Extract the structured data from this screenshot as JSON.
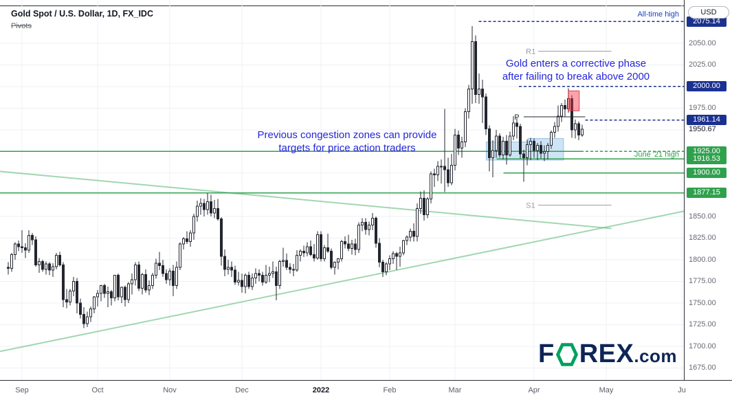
{
  "header": {
    "symbol_title": "Gold Spot / U.S. Dollar, 1D, FX_IDC",
    "indicator": "Pivots",
    "currency_button": "USD"
  },
  "annotations": {
    "all_time_high": "All-time high",
    "corrective_phase": "Gold enters a corrective phase\nafter failing to break above 2000",
    "congestion_zones": "Previous congestion zones can provide\ntargets for price action traders",
    "june_21_high": "June '21 high"
  },
  "logo": {
    "f": "F",
    "rex": "REX",
    "com": ".com"
  },
  "colors": {
    "navy": "#1b3190",
    "green": "#2fa14d",
    "trend_green": "#63bd7c",
    "gray": "#9b9ea6",
    "dark": "#23262f",
    "candle": "#23262f",
    "grid": "#eef0f5",
    "box_blue": "rgba(126,183,231,0.38)",
    "box_blue_border": "rgba(96,150,200,0.55)",
    "box_red": "rgba(242,54,69,0.45)",
    "box_red_border": "rgba(220,40,55,0.85)",
    "annotation_blue": "#2426d8",
    "badge_navy": "#1b3190",
    "badge_green": "#2fa14d",
    "logo_navy": "#0e2556",
    "logo_green": "#00a160"
  },
  "chart_data": {
    "type": "candlestick",
    "title": "Gold Spot / U.S. Dollar",
    "interval": "1D",
    "exchange": "FX_IDC",
    "ylim": [
      1661,
      2100
    ],
    "grid": {
      "h_step": 25,
      "h_min": 1675,
      "h_max": 2050
    },
    "y_ticks": [
      2050,
      2025,
      1975,
      1850,
      1825,
      1800,
      1775,
      1750,
      1725,
      1700,
      1675
    ],
    "plain_price_label": 1950.67,
    "price_badges": [
      {
        "value": 2075.14,
        "style": "navy"
      },
      {
        "value": 2000.0,
        "style": "navy"
      },
      {
        "value": 1961.14,
        "style": "navy"
      },
      {
        "value": 1925.0,
        "style": "green"
      },
      {
        "value": 1916.53,
        "style": "green"
      },
      {
        "value": 1900.0,
        "style": "green"
      },
      {
        "value": 1877.15,
        "style": "green"
      }
    ],
    "x_axis": {
      "labels": [
        {
          "text": "Sep",
          "idx": 4
        },
        {
          "text": "Oct",
          "idx": 26
        },
        {
          "text": "Nov",
          "idx": 47
        },
        {
          "text": "Dec",
          "idx": 68
        },
        {
          "text": "2022",
          "idx": 91,
          "major": true
        },
        {
          "text": "Feb",
          "idx": 111
        },
        {
          "text": "Mar",
          "idx": 130
        },
        {
          "text": "Apr",
          "idx": 153
        },
        {
          "text": "May",
          "idx": 174
        },
        {
          "text": "Ju",
          "idx": 196
        }
      ]
    },
    "levels": [
      {
        "name": "all-time-high-line",
        "price": 2075.14,
        "color": "navy",
        "dash": true,
        "x1f": 0.7,
        "x2f": 1.0
      },
      {
        "name": "round-2000-line",
        "price": 2000.0,
        "color": "navy",
        "dash": true,
        "x1f": 0.759,
        "x2f": 1.0
      },
      {
        "name": "current-level-line",
        "price": 1961.14,
        "color": "navy",
        "dash": true,
        "x1f": 0.856,
        "x2f": 1.0
      },
      {
        "name": "level-1925-solid",
        "price": 1925.0,
        "color": "green",
        "dash": false,
        "x1f": 0.0,
        "x2f": 0.849
      },
      {
        "name": "level-1925-dashed",
        "price": 1925.0,
        "color": "green",
        "dash": true,
        "x1f": 0.849,
        "x2f": 1.0
      },
      {
        "name": "june-21-high-line",
        "price": 1916.53,
        "color": "green",
        "dash": false,
        "x1f": 0.726,
        "x2f": 1.0
      },
      {
        "name": "level-1900",
        "price": 1900.0,
        "color": "green",
        "dash": false,
        "x1f": 0.736,
        "x2f": 1.0
      },
      {
        "name": "level-1877",
        "price": 1877.15,
        "color": "green",
        "dash": false,
        "x1f": 0.0,
        "x2f": 1.0
      }
    ],
    "pivots": [
      {
        "label": "R1",
        "price": 2041,
        "x1f": 0.787,
        "x2f": 0.894,
        "label_xf": 0.769,
        "style": "gray"
      },
      {
        "label": "P",
        "price": 1965,
        "x1f": 0.766,
        "x2f": 0.856,
        "label_xf": 0.752,
        "style": "dark"
      },
      {
        "label": "S1",
        "price": 1863,
        "x1f": 0.787,
        "x2f": 0.894,
        "label_xf": 0.769,
        "style": "gray"
      }
    ],
    "trendlines": [
      {
        "x1f": 0.0,
        "p1": 1902,
        "x2f": 0.894,
        "p2": 1836
      },
      {
        "x1f": 0.0,
        "p1": 1694,
        "x2f": 1.0,
        "p2": 1856
      }
    ],
    "boxes": [
      {
        "x1f": 0.711,
        "x2f": 0.772,
        "top": 1936,
        "bottom": 1915,
        "fill": "blue"
      },
      {
        "x1f": 0.772,
        "x2f": 0.824,
        "top": 1940,
        "bottom": 1915,
        "fill": "blue"
      },
      {
        "x1f": 0.831,
        "x2f": 0.847,
        "top": 1995,
        "bottom": 1972,
        "fill": "red"
      }
    ],
    "candles": [
      [
        1791,
        1797,
        1783,
        1790
      ],
      [
        1790,
        1808,
        1786,
        1806
      ],
      [
        1806,
        1820,
        1800,
        1818
      ],
      [
        1818,
        1822,
        1810,
        1815
      ],
      [
        1815,
        1834,
        1808,
        1814
      ],
      [
        1814,
        1819,
        1802,
        1811
      ],
      [
        1811,
        1834,
        1808,
        1828
      ],
      [
        1828,
        1831,
        1817,
        1823
      ],
      [
        1823,
        1827,
        1792,
        1794
      ],
      [
        1794,
        1802,
        1785,
        1798
      ],
      [
        1798,
        1800,
        1786,
        1789
      ],
      [
        1789,
        1798,
        1783,
        1795
      ],
      [
        1795,
        1797,
        1782,
        1788
      ],
      [
        1788,
        1796,
        1780,
        1792
      ],
      [
        1792,
        1808,
        1789,
        1805
      ],
      [
        1805,
        1809,
        1792,
        1794
      ],
      [
        1794,
        1797,
        1745,
        1754
      ],
      [
        1754,
        1766,
        1744,
        1751
      ],
      [
        1751,
        1766,
        1747,
        1764
      ],
      [
        1764,
        1780,
        1758,
        1775
      ],
      [
        1775,
        1779,
        1738,
        1750
      ],
      [
        1750,
        1755,
        1732,
        1737
      ],
      [
        1737,
        1745,
        1721,
        1726
      ],
      [
        1726,
        1740,
        1722,
        1734
      ],
      [
        1734,
        1746,
        1728,
        1743
      ],
      [
        1743,
        1758,
        1738,
        1757
      ],
      [
        1757,
        1765,
        1746,
        1761
      ],
      [
        1761,
        1771,
        1752,
        1770
      ],
      [
        1770,
        1772,
        1756,
        1761
      ],
      [
        1761,
        1769,
        1745,
        1763
      ],
      [
        1763,
        1765,
        1747,
        1756
      ],
      [
        1756,
        1782,
        1752,
        1782
      ],
      [
        1782,
        1784,
        1753,
        1757
      ],
      [
        1757,
        1769,
        1750,
        1768
      ],
      [
        1768,
        1770,
        1746,
        1754
      ],
      [
        1754,
        1774,
        1750,
        1772
      ],
      [
        1772,
        1784,
        1760,
        1777
      ],
      [
        1777,
        1797,
        1770,
        1794
      ],
      [
        1794,
        1798,
        1764,
        1767
      ],
      [
        1767,
        1785,
        1760,
        1783
      ],
      [
        1783,
        1789,
        1762,
        1765
      ],
      [
        1765,
        1776,
        1759,
        1770
      ],
      [
        1770,
        1785,
        1766,
        1782
      ],
      [
        1782,
        1801,
        1778,
        1796
      ],
      [
        1796,
        1809,
        1788,
        1793
      ],
      [
        1793,
        1800,
        1780,
        1784
      ],
      [
        1784,
        1789,
        1772,
        1777
      ],
      [
        1777,
        1790,
        1770,
        1787
      ],
      [
        1787,
        1794,
        1758,
        1770
      ],
      [
        1770,
        1798,
        1766,
        1791
      ],
      [
        1791,
        1820,
        1788,
        1818
      ],
      [
        1818,
        1826,
        1812,
        1824
      ],
      [
        1824,
        1833,
        1818,
        1821
      ],
      [
        1821,
        1834,
        1815,
        1831
      ],
      [
        1831,
        1853,
        1823,
        1850
      ],
      [
        1850,
        1868,
        1844,
        1862
      ],
      [
        1862,
        1871,
        1852,
        1865
      ],
      [
        1865,
        1870,
        1850,
        1858
      ],
      [
        1858,
        1877,
        1852,
        1867
      ],
      [
        1867,
        1875,
        1850,
        1854
      ],
      [
        1854,
        1869,
        1848,
        1859
      ],
      [
        1859,
        1870,
        1845,
        1847
      ],
      [
        1847,
        1849,
        1793,
        1804
      ],
      [
        1804,
        1812,
        1781,
        1789
      ],
      [
        1789,
        1800,
        1783,
        1791
      ],
      [
        1791,
        1798,
        1780,
        1788
      ],
      [
        1788,
        1793,
        1771,
        1774
      ],
      [
        1774,
        1786,
        1770,
        1776
      ],
      [
        1776,
        1784,
        1762,
        1769
      ],
      [
        1769,
        1784,
        1761,
        1782
      ],
      [
        1782,
        1786,
        1766,
        1769
      ],
      [
        1769,
        1784,
        1765,
        1779
      ],
      [
        1779,
        1790,
        1772,
        1784
      ],
      [
        1784,
        1789,
        1775,
        1782
      ],
      [
        1782,
        1786,
        1770,
        1774
      ],
      [
        1774,
        1794,
        1772,
        1782
      ],
      [
        1782,
        1792,
        1774,
        1784
      ],
      [
        1784,
        1798,
        1779,
        1786
      ],
      [
        1786,
        1792,
        1753,
        1770
      ],
      [
        1770,
        1800,
        1766,
        1798
      ],
      [
        1798,
        1814,
        1792,
        1799
      ],
      [
        1799,
        1807,
        1788,
        1791
      ],
      [
        1791,
        1796,
        1784,
        1789
      ],
      [
        1789,
        1795,
        1781,
        1788
      ],
      [
        1788,
        1811,
        1786,
        1805
      ],
      [
        1805,
        1812,
        1798,
        1810
      ],
      [
        1810,
        1816,
        1803,
        1808
      ],
      [
        1808,
        1820,
        1804,
        1815
      ],
      [
        1815,
        1822,
        1804,
        1806
      ],
      [
        1806,
        1818,
        1798,
        1802
      ],
      [
        1802,
        1833,
        1800,
        1829
      ],
      [
        1829,
        1833,
        1798,
        1801
      ],
      [
        1801,
        1817,
        1798,
        1814
      ],
      [
        1814,
        1830,
        1808,
        1810
      ],
      [
        1810,
        1813,
        1789,
        1791
      ],
      [
        1791,
        1798,
        1783,
        1797
      ],
      [
        1797,
        1802,
        1789,
        1801
      ],
      [
        1801,
        1823,
        1798,
        1821
      ],
      [
        1821,
        1827,
        1813,
        1818
      ],
      [
        1818,
        1829,
        1810,
        1813
      ],
      [
        1813,
        1823,
        1806,
        1818
      ],
      [
        1818,
        1824,
        1805,
        1812
      ],
      [
        1812,
        1843,
        1808,
        1840
      ],
      [
        1840,
        1848,
        1833,
        1843
      ],
      [
        1843,
        1848,
        1829,
        1835
      ],
      [
        1835,
        1844,
        1828,
        1840
      ],
      [
        1840,
        1854,
        1834,
        1848
      ],
      [
        1848,
        1850,
        1814,
        1819
      ],
      [
        1819,
        1825,
        1791,
        1797
      ],
      [
        1797,
        1800,
        1780,
        1786
      ],
      [
        1786,
        1797,
        1782,
        1795
      ],
      [
        1795,
        1805,
        1788,
        1801
      ],
      [
        1801,
        1810,
        1795,
        1807
      ],
      [
        1807,
        1809,
        1788,
        1804
      ],
      [
        1804,
        1815,
        1792,
        1808
      ],
      [
        1808,
        1823,
        1805,
        1822
      ],
      [
        1822,
        1828,
        1817,
        1826
      ],
      [
        1826,
        1836,
        1821,
        1833
      ],
      [
        1833,
        1842,
        1821,
        1827
      ],
      [
        1827,
        1865,
        1821,
        1859
      ],
      [
        1859,
        1879,
        1853,
        1871
      ],
      [
        1871,
        1880,
        1845,
        1852
      ],
      [
        1852,
        1872,
        1848,
        1870
      ],
      [
        1870,
        1902,
        1865,
        1899
      ],
      [
        1899,
        1905,
        1884,
        1898
      ],
      [
        1898,
        1914,
        1891,
        1908
      ],
      [
        1908,
        1916,
        1888,
        1908
      ],
      [
        1908,
        1974,
        1878,
        1904
      ],
      [
        1904,
        1918,
        1884,
        1889
      ],
      [
        1889,
        1922,
        1886,
        1909
      ],
      [
        1909,
        1951,
        1903,
        1944
      ],
      [
        1944,
        1949,
        1921,
        1929
      ],
      [
        1929,
        1942,
        1918,
        1936
      ],
      [
        1936,
        1975,
        1930,
        1971
      ],
      [
        1971,
        2002,
        1963,
        1997
      ],
      [
        1997,
        2070,
        1980,
        2052
      ],
      [
        2052,
        2059,
        1981,
        1991
      ],
      [
        1991,
        2015,
        1980,
        1997
      ],
      [
        1997,
        2008,
        1958,
        1988
      ],
      [
        1988,
        1992,
        1944,
        1951
      ],
      [
        1951,
        1955,
        1902,
        1918
      ],
      [
        1918,
        1938,
        1895,
        1926
      ],
      [
        1926,
        1950,
        1918,
        1943
      ],
      [
        1943,
        1946,
        1918,
        1921
      ],
      [
        1921,
        1942,
        1916,
        1937
      ],
      [
        1937,
        1944,
        1910,
        1921
      ],
      [
        1921,
        1948,
        1919,
        1943
      ],
      [
        1943,
        1966,
        1938,
        1958
      ],
      [
        1958,
        1964,
        1940,
        1954
      ],
      [
        1954,
        1957,
        1917,
        1922
      ],
      [
        1922,
        1927,
        1890,
        1918
      ],
      [
        1918,
        1939,
        1909,
        1933
      ],
      [
        1933,
        1941,
        1915,
        1937
      ],
      [
        1937,
        1940,
        1918,
        1926
      ],
      [
        1926,
        1935,
        1915,
        1932
      ],
      [
        1932,
        1937,
        1917,
        1923
      ],
      [
        1923,
        1932,
        1914,
        1925
      ],
      [
        1925,
        1935,
        1916,
        1932
      ],
      [
        1932,
        1949,
        1928,
        1947
      ],
      [
        1947,
        1959,
        1941,
        1954
      ],
      [
        1954,
        1978,
        1948,
        1966
      ],
      [
        1966,
        1981,
        1959,
        1978
      ],
      [
        1978,
        1985,
        1965,
        1974
      ],
      [
        1974,
        1998,
        1970,
        1986
      ],
      [
        1986,
        1990,
        1941,
        1950
      ],
      [
        1950,
        1962,
        1940,
        1957
      ],
      [
        1957,
        1960,
        1938,
        1944
      ],
      [
        1944,
        1956,
        1942,
        1950.67
      ]
    ]
  }
}
